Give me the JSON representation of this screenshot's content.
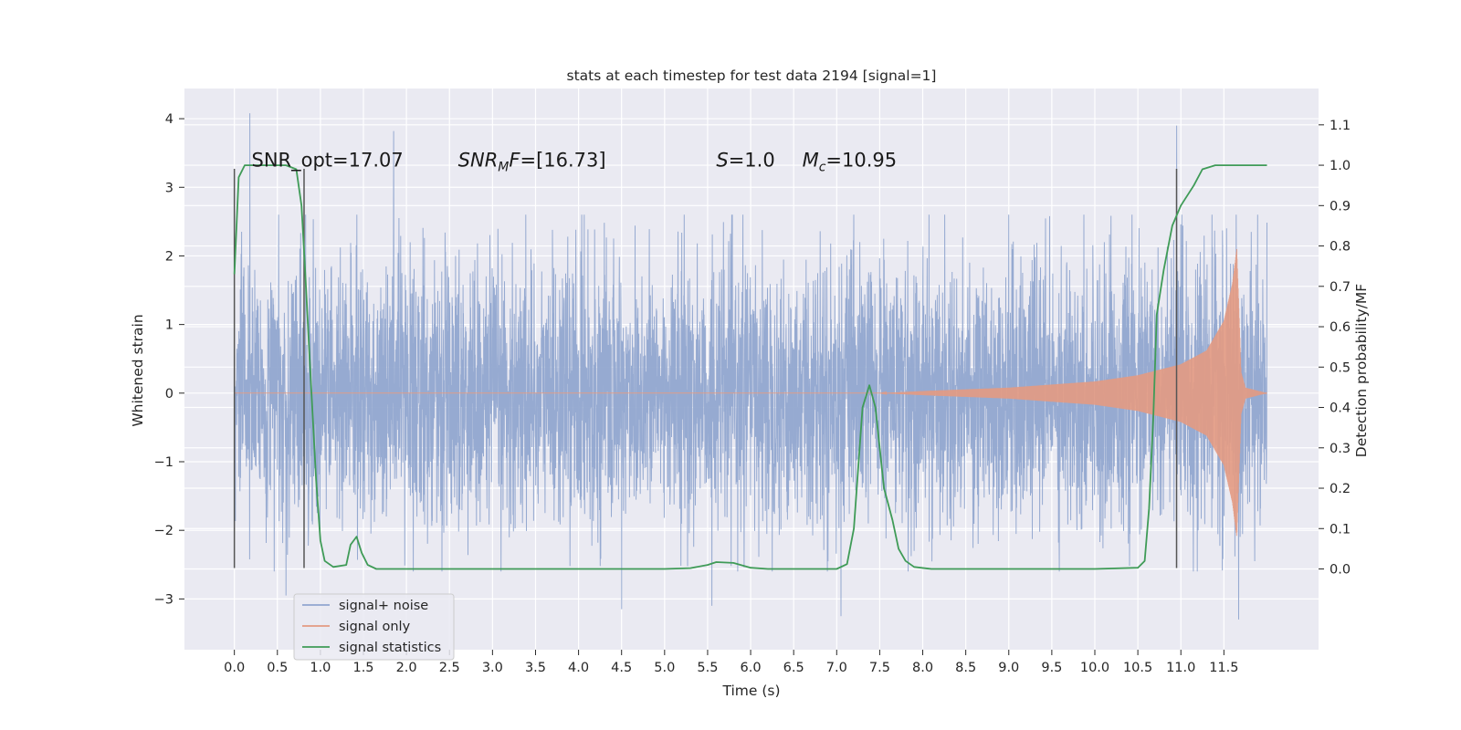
{
  "chart_data": {
    "type": "line",
    "title": "stats at each timestep for test data 2194 [signal=1]",
    "xlabel": "Time (s)",
    "ylabel": "Whitened strain",
    "y2label": "Detection probability/MF",
    "xlim": [
      -0.58,
      12.6
    ],
    "ylim": [
      -3.74,
      4.44
    ],
    "y2lim": [
      -0.2,
      1.19
    ],
    "xticks": [
      0.0,
      0.5,
      1.0,
      1.5,
      2.0,
      2.5,
      3.0,
      3.5,
      4.0,
      4.5,
      5.0,
      5.5,
      6.0,
      6.5,
      7.0,
      7.5,
      8.0,
      8.5,
      9.0,
      9.5,
      10.0,
      10.5,
      11.0,
      11.5
    ],
    "xtick_labels": [
      "0.0",
      "0.5",
      "1.0",
      "1.5",
      "2.0",
      "2.5",
      "3.0",
      "3.5",
      "4.0",
      "4.5",
      "5.0",
      "5.5",
      "6.0",
      "6.5",
      "7.0",
      "7.5",
      "8.0",
      "8.5",
      "9.0",
      "9.5",
      "10.0",
      "10.5",
      "11.0",
      "11.5"
    ],
    "yticks": [
      -3,
      -2,
      -1,
      0,
      1,
      2,
      3,
      4
    ],
    "ytick_labels": [
      "−3",
      "−2",
      "−1",
      "0",
      "1",
      "2",
      "3",
      "4"
    ],
    "y2ticks": [
      0.0,
      0.1,
      0.2,
      0.3,
      0.4,
      0.5,
      0.6,
      0.7,
      0.8,
      0.9,
      1.0,
      1.1
    ],
    "y2tick_labels": [
      "0.0",
      "0.1",
      "0.2",
      "0.3",
      "0.4",
      "0.5",
      "0.6",
      "0.7",
      "0.8",
      "0.9",
      "1.0",
      "1.1"
    ],
    "grid": true,
    "legend_position": "lower-left",
    "series": [
      {
        "name": "signal+ noise",
        "axis": "left",
        "color": "#91a6cf",
        "kind": "dense-noise",
        "x_range": [
          0.0,
          12.0
        ],
        "typical_envelope": 1.5,
        "extremes": [
          {
            "x": 0.18,
            "y": 4.08
          },
          {
            "x": 1.85,
            "y": 3.82
          },
          {
            "x": 10.95,
            "y": 3.9
          },
          {
            "x": 11.67,
            "y": -3.3
          },
          {
            "x": 7.05,
            "y": -3.25
          },
          {
            "x": 4.5,
            "y": -3.15
          },
          {
            "x": 5.55,
            "y": -3.1
          },
          {
            "x": 0.6,
            "y": -2.95
          }
        ]
      },
      {
        "name": "signal only",
        "axis": "left",
        "color": "#e39a82",
        "kind": "chirp",
        "x_range": [
          0.0,
          12.0
        ],
        "start_visible": 7.5,
        "peak_time": 11.65,
        "amplitude_points": [
          [
            7.5,
            0.0
          ],
          [
            8.0,
            0.03
          ],
          [
            9.0,
            0.08
          ],
          [
            10.0,
            0.17
          ],
          [
            10.5,
            0.26
          ],
          [
            11.0,
            0.42
          ],
          [
            11.3,
            0.62
          ],
          [
            11.5,
            1.05
          ],
          [
            11.6,
            1.6
          ],
          [
            11.65,
            2.1
          ],
          [
            11.7,
            0.3
          ],
          [
            11.75,
            0.08
          ],
          [
            12.0,
            0.0
          ]
        ]
      },
      {
        "name": "signal statistics",
        "axis": "right",
        "color": "#3f9b57",
        "kind": "line",
        "x": [
          0.0,
          0.05,
          0.12,
          0.25,
          0.4,
          0.6,
          0.72,
          0.78,
          0.82,
          0.88,
          0.95,
          1.0,
          1.05,
          1.15,
          1.3,
          1.35,
          1.42,
          1.48,
          1.55,
          1.65,
          2.0,
          5.0,
          5.3,
          5.5,
          5.6,
          5.8,
          6.0,
          6.2,
          6.5,
          7.0,
          7.12,
          7.2,
          7.3,
          7.38,
          7.45,
          7.55,
          7.65,
          7.72,
          7.8,
          7.9,
          8.1,
          9.0,
          10.0,
          10.5,
          10.58,
          10.63,
          10.68,
          10.72,
          10.8,
          10.9,
          11.0,
          11.15,
          11.25,
          11.4,
          12.0
        ],
        "y": [
          0.73,
          0.97,
          1.0,
          1.0,
          1.0,
          1.0,
          0.99,
          0.9,
          0.75,
          0.5,
          0.22,
          0.07,
          0.02,
          0.005,
          0.01,
          0.06,
          0.08,
          0.04,
          0.01,
          0.0,
          0.0,
          0.0,
          0.002,
          0.01,
          0.017,
          0.015,
          0.003,
          0.0,
          0.0,
          0.0,
          0.012,
          0.1,
          0.4,
          0.455,
          0.4,
          0.2,
          0.12,
          0.05,
          0.02,
          0.005,
          0.0,
          0.0,
          0.0,
          0.003,
          0.02,
          0.15,
          0.38,
          0.63,
          0.74,
          0.85,
          0.9,
          0.95,
          0.99,
          1.0,
          1.0
        ]
      }
    ],
    "vertical_lines": [
      {
        "x": 0.0,
        "y_from": -2.55,
        "y_to": 3.27
      },
      {
        "x": 0.81,
        "y_from": -2.55,
        "y_to": 3.27
      },
      {
        "x": 10.95,
        "y_from": -2.55,
        "y_to": 3.27
      }
    ],
    "annotations": [
      {
        "id": "snr-opt",
        "segments": [
          {
            "text": "SNR_opt=17.07",
            "italic": false
          }
        ],
        "x": 0.2,
        "y": 3.3
      },
      {
        "id": "snr-mf",
        "segments": [
          {
            "text": "SNR",
            "italic": true
          },
          {
            "text": "M",
            "italic": true,
            "sub": true
          },
          {
            "text": "F",
            "italic": true
          },
          {
            "text": "=[16.73]",
            "italic": false
          }
        ],
        "x": 2.6,
        "y": 3.3
      },
      {
        "id": "s-value",
        "segments": [
          {
            "text": "S",
            "italic": true
          },
          {
            "text": "=1.0",
            "italic": false
          }
        ],
        "x": 5.6,
        "y": 3.3
      },
      {
        "id": "mc-value",
        "segments": [
          {
            "text": "M",
            "italic": true
          },
          {
            "text": "c",
            "italic": true,
            "sub": true
          },
          {
            "text": "=10.95",
            "italic": false
          }
        ],
        "x": 6.6,
        "y": 3.3
      }
    ]
  },
  "legend": {
    "items": [
      {
        "label": "signal+ noise",
        "color": "#91a6cf"
      },
      {
        "label": "signal only",
        "color": "#e39a82"
      },
      {
        "label": "signal statistics",
        "color": "#3f9b57"
      }
    ]
  }
}
